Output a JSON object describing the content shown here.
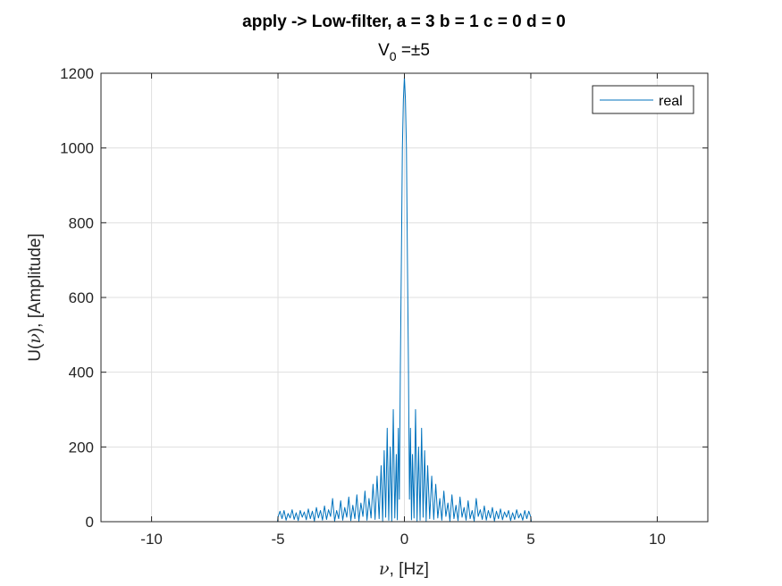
{
  "chart_data": {
    "type": "line",
    "title": "apply -> Low-filter, a = 3 b = 1 c = 0 d = 0",
    "subtitle": {
      "base": "V",
      "sub": "0",
      "rest": " =±5"
    },
    "xlabel": {
      "symbol": "ν",
      "rest": ", [Hz]"
    },
    "ylabel": {
      "prefix": "U(",
      "symbol": "ν",
      "rest": "), [Amplitude]"
    },
    "xlim": [
      -12,
      12
    ],
    "ylim": [
      0,
      1200
    ],
    "xticks": [
      -10,
      -5,
      0,
      5,
      10
    ],
    "xtick_labels": [
      "-10",
      "-5",
      "0",
      "5",
      "10"
    ],
    "yticks": [
      0,
      200,
      400,
      600,
      800,
      1000,
      1200
    ],
    "ytick_labels": [
      "0",
      "200",
      "400",
      "600",
      "800",
      "1000",
      "1200"
    ],
    "grid": true,
    "legend": {
      "position": "top-right",
      "entries": [
        "real"
      ]
    },
    "line_color": "#0072BD",
    "series": [
      {
        "name": "real",
        "x": [
          -12,
          -5.02,
          -5.0,
          -4.92,
          -4.84,
          -4.76,
          -4.68,
          -4.6,
          -4.52,
          -4.44,
          -4.36,
          -4.28,
          -4.2,
          -4.12,
          -4.04,
          -3.96,
          -3.88,
          -3.8,
          -3.72,
          -3.64,
          -3.56,
          -3.48,
          -3.4,
          -3.32,
          -3.24,
          -3.16,
          -3.08,
          -3.0,
          -2.92,
          -2.84,
          -2.76,
          -2.68,
          -2.6,
          -2.52,
          -2.44,
          -2.36,
          -2.28,
          -2.2,
          -2.12,
          -2.04,
          -1.96,
          -1.88,
          -1.8,
          -1.72,
          -1.64,
          -1.56,
          -1.48,
          -1.4,
          -1.32,
          -1.24,
          -1.16,
          -1.08,
          -1.0,
          -0.92,
          -0.86,
          -0.8,
          -0.74,
          -0.68,
          -0.62,
          -0.56,
          -0.5,
          -0.44,
          -0.38,
          -0.32,
          -0.28,
          -0.24,
          -0.2,
          -0.16,
          -0.12,
          -0.08,
          -0.04,
          0.0,
          0.04,
          0.08,
          0.12,
          0.16,
          0.2,
          0.24,
          0.28,
          0.32,
          0.38,
          0.44,
          0.5,
          0.56,
          0.62,
          0.68,
          0.74,
          0.8,
          0.86,
          0.92,
          1.0,
          1.08,
          1.16,
          1.24,
          1.32,
          1.4,
          1.48,
          1.56,
          1.64,
          1.72,
          1.8,
          1.88,
          1.96,
          2.04,
          2.12,
          2.2,
          2.28,
          2.36,
          2.44,
          2.52,
          2.6,
          2.68,
          2.76,
          2.84,
          2.92,
          3.0,
          3.08,
          3.16,
          3.24,
          3.32,
          3.4,
          3.48,
          3.56,
          3.64,
          3.72,
          3.8,
          3.88,
          3.96,
          4.04,
          4.12,
          4.2,
          4.28,
          4.36,
          4.44,
          4.52,
          4.6,
          4.68,
          4.76,
          4.84,
          4.92,
          5.0,
          5.02,
          12
        ],
        "y": [
          0,
          0,
          12,
          28,
          8,
          30,
          4,
          22,
          10,
          32,
          6,
          24,
          3,
          30,
          12,
          26,
          5,
          34,
          8,
          28,
          2,
          38,
          10,
          30,
          4,
          42,
          6,
          32,
          14,
          62,
          2,
          30,
          8,
          56,
          4,
          38,
          12,
          66,
          3,
          44,
          8,
          72,
          2,
          50,
          14,
          82,
          4,
          62,
          10,
          100,
          6,
          122,
          8,
          150,
          2,
          190,
          12,
          250,
          4,
          200,
          2,
          300,
          10,
          180,
          5,
          250,
          60,
          410,
          700,
          1000,
          1130,
          1190,
          1130,
          1000,
          700,
          410,
          60,
          250,
          5,
          180,
          10,
          300,
          2,
          200,
          4,
          250,
          12,
          190,
          2,
          150,
          8,
          122,
          6,
          100,
          10,
          62,
          4,
          82,
          14,
          50,
          2,
          72,
          8,
          44,
          3,
          66,
          12,
          38,
          4,
          56,
          8,
          30,
          2,
          62,
          14,
          32,
          6,
          42,
          4,
          30,
          10,
          38,
          2,
          28,
          8,
          34,
          5,
          26,
          12,
          30,
          3,
          24,
          6,
          32,
          10,
          22,
          4,
          30,
          8,
          28,
          12,
          0,
          0
        ]
      }
    ]
  }
}
